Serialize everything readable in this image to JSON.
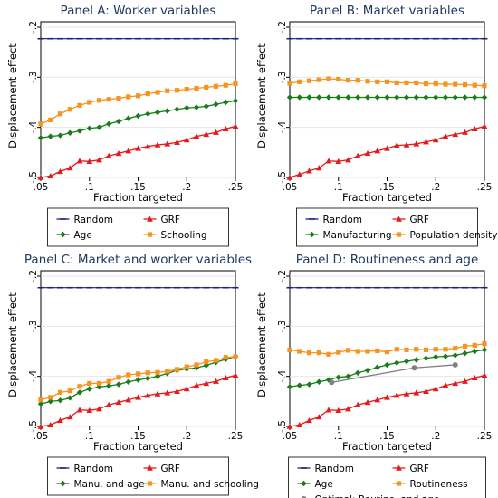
{
  "colors": {
    "random": "#1a237e",
    "grf": "#e41a1c",
    "third": "#1b7c1b",
    "fourth": "#f7931e",
    "optimal": "#808080",
    "title": "#1f3864",
    "grid": "#e6e6e6"
  },
  "chart_data": [
    {
      "type": "line",
      "title": "Panel A: Worker variables",
      "xlabel": "Fraction targeted",
      "ylabel": "Displacement effect",
      "xlim": [
        0.05,
        0.25
      ],
      "ylim": [
        -0.5,
        -0.2
      ],
      "xticks": [
        ".05",
        ".1",
        ".15",
        ".2",
        ".25"
      ],
      "yticks": [
        "-.2",
        "-.3",
        "-.4",
        "-.5"
      ],
      "grid": true,
      "legend_position": "bottom",
      "x": [
        0.05,
        0.06,
        0.07,
        0.08,
        0.09,
        0.1,
        0.11,
        0.12,
        0.13,
        0.14,
        0.15,
        0.16,
        0.17,
        0.18,
        0.19,
        0.2,
        0.21,
        0.22,
        0.23,
        0.24,
        0.25
      ],
      "series": [
        {
          "name": "Random",
          "key": "random",
          "marker": "dash",
          "values": [
            -0.223,
            -0.223,
            -0.223,
            -0.223,
            -0.223,
            -0.223,
            -0.223,
            -0.223,
            -0.223,
            -0.223,
            -0.223,
            -0.223,
            -0.223,
            -0.223,
            -0.223,
            -0.223,
            -0.223,
            -0.223,
            -0.223,
            -0.223,
            -0.223
          ]
        },
        {
          "name": "GRF",
          "key": "grf",
          "marker": "triangle",
          "values": [
            -0.5,
            -0.497,
            -0.488,
            -0.481,
            -0.467,
            -0.468,
            -0.465,
            -0.457,
            -0.452,
            -0.447,
            -0.442,
            -0.438,
            -0.435,
            -0.433,
            -0.43,
            -0.425,
            -0.418,
            -0.414,
            -0.41,
            -0.403,
            -0.398
          ]
        },
        {
          "name": "Age",
          "key": "third",
          "marker": "diamond",
          "values": [
            -0.421,
            -0.418,
            -0.416,
            -0.411,
            -0.407,
            -0.402,
            -0.4,
            -0.393,
            -0.388,
            -0.382,
            -0.377,
            -0.373,
            -0.37,
            -0.367,
            -0.364,
            -0.361,
            -0.36,
            -0.358,
            -0.354,
            -0.35,
            -0.347
          ]
        },
        {
          "name": "Schooling",
          "key": "fourth",
          "marker": "square",
          "values": [
            -0.393,
            -0.385,
            -0.373,
            -0.364,
            -0.356,
            -0.35,
            -0.346,
            -0.344,
            -0.342,
            -0.339,
            -0.337,
            -0.333,
            -0.33,
            -0.327,
            -0.326,
            -0.324,
            -0.322,
            -0.32,
            -0.318,
            -0.316,
            -0.313
          ]
        }
      ]
    },
    {
      "type": "line",
      "title": "Panel B: Market variables",
      "xlabel": "Fraction targeted",
      "ylabel": "Displacement effect",
      "xlim": [
        0.05,
        0.25
      ],
      "ylim": [
        -0.5,
        -0.2
      ],
      "xticks": [
        ".05",
        ".1",
        ".15",
        ".2",
        ".25"
      ],
      "yticks": [
        "-.2",
        "-.3",
        "-.4",
        "-.5"
      ],
      "grid": true,
      "legend_position": "bottom",
      "x": [
        0.05,
        0.06,
        0.07,
        0.08,
        0.09,
        0.1,
        0.11,
        0.12,
        0.13,
        0.14,
        0.15,
        0.16,
        0.17,
        0.18,
        0.19,
        0.2,
        0.21,
        0.22,
        0.23,
        0.24,
        0.25
      ],
      "series": [
        {
          "name": "Random",
          "key": "random",
          "marker": "dash",
          "values": [
            -0.223,
            -0.223,
            -0.223,
            -0.223,
            -0.223,
            -0.223,
            -0.223,
            -0.223,
            -0.223,
            -0.223,
            -0.223,
            -0.223,
            -0.223,
            -0.223,
            -0.223,
            -0.223,
            -0.223,
            -0.223,
            -0.223,
            -0.223,
            -0.223
          ]
        },
        {
          "name": "GRF",
          "key": "grf",
          "marker": "triangle",
          "values": [
            -0.5,
            -0.494,
            -0.487,
            -0.481,
            -0.467,
            -0.468,
            -0.465,
            -0.457,
            -0.452,
            -0.447,
            -0.442,
            -0.436,
            -0.435,
            -0.433,
            -0.429,
            -0.425,
            -0.418,
            -0.414,
            -0.41,
            -0.403,
            -0.398
          ]
        },
        {
          "name": "Manufacturing",
          "key": "third",
          "marker": "diamond",
          "values": [
            -0.34,
            -0.34,
            -0.34,
            -0.34,
            -0.34,
            -0.34,
            -0.34,
            -0.34,
            -0.34,
            -0.34,
            -0.34,
            -0.34,
            -0.34,
            -0.34,
            -0.34,
            -0.34,
            -0.34,
            -0.34,
            -0.34,
            -0.34,
            -0.34
          ]
        },
        {
          "name": "Population density",
          "key": "fourth",
          "marker": "square",
          "values": [
            -0.312,
            -0.309,
            -0.307,
            -0.305,
            -0.303,
            -0.304,
            -0.306,
            -0.306,
            -0.308,
            -0.309,
            -0.309,
            -0.311,
            -0.311,
            -0.311,
            -0.313,
            -0.313,
            -0.314,
            -0.314,
            -0.315,
            -0.316,
            -0.317
          ]
        }
      ]
    },
    {
      "type": "line",
      "title": "Panel C: Market and worker variables",
      "xlabel": "Fraction targeted",
      "ylabel": "Displacement effect",
      "xlim": [
        0.05,
        0.25
      ],
      "ylim": [
        -0.5,
        -0.2
      ],
      "xticks": [
        ".05",
        ".1",
        ".15",
        ".2",
        ".25"
      ],
      "yticks": [
        "-.2",
        "-.3",
        "-.4",
        "-.5"
      ],
      "grid": true,
      "legend_position": "bottom",
      "x": [
        0.05,
        0.06,
        0.07,
        0.08,
        0.09,
        0.1,
        0.11,
        0.12,
        0.13,
        0.14,
        0.15,
        0.16,
        0.17,
        0.18,
        0.19,
        0.2,
        0.21,
        0.22,
        0.23,
        0.24,
        0.25
      ],
      "series": [
        {
          "name": "Random",
          "key": "random",
          "marker": "dash",
          "values": [
            -0.223,
            -0.223,
            -0.223,
            -0.223,
            -0.223,
            -0.223,
            -0.223,
            -0.223,
            -0.223,
            -0.223,
            -0.223,
            -0.223,
            -0.223,
            -0.223,
            -0.223,
            -0.223,
            -0.223,
            -0.223,
            -0.223,
            -0.223,
            -0.223
          ]
        },
        {
          "name": "GRF",
          "key": "grf",
          "marker": "triangle",
          "values": [
            -0.5,
            -0.497,
            -0.488,
            -0.481,
            -0.467,
            -0.468,
            -0.465,
            -0.457,
            -0.452,
            -0.447,
            -0.442,
            -0.438,
            -0.435,
            -0.433,
            -0.43,
            -0.425,
            -0.418,
            -0.414,
            -0.41,
            -0.403,
            -0.398
          ]
        },
        {
          "name": "Manu. and age",
          "key": "third",
          "marker": "diamond",
          "values": [
            -0.455,
            -0.45,
            -0.448,
            -0.443,
            -0.432,
            -0.425,
            -0.421,
            -0.419,
            -0.416,
            -0.411,
            -0.407,
            -0.404,
            -0.4,
            -0.394,
            -0.388,
            -0.385,
            -0.383,
            -0.378,
            -0.372,
            -0.366,
            -0.36
          ]
        },
        {
          "name": "Manu. and schooling",
          "key": "fourth",
          "marker": "square",
          "values": [
            -0.447,
            -0.442,
            -0.432,
            -0.429,
            -0.42,
            -0.414,
            -0.414,
            -0.41,
            -0.402,
            -0.397,
            -0.395,
            -0.393,
            -0.392,
            -0.39,
            -0.386,
            -0.381,
            -0.377,
            -0.371,
            -0.368,
            -0.362,
            -0.361
          ]
        }
      ]
    },
    {
      "type": "line",
      "title": "Panel D: Routineness and age",
      "xlabel": "Fraction targeted",
      "ylabel": "Displacement effect",
      "xlim": [
        0.05,
        0.25
      ],
      "ylim": [
        -0.5,
        -0.2
      ],
      "xticks": [
        ".05",
        ".1",
        ".15",
        ".2",
        ".25"
      ],
      "yticks": [
        "-.2",
        "-.3",
        "-.4",
        "-.5"
      ],
      "grid": true,
      "legend_position": "bottom",
      "x": [
        0.05,
        0.06,
        0.07,
        0.08,
        0.09,
        0.1,
        0.11,
        0.12,
        0.13,
        0.14,
        0.15,
        0.16,
        0.17,
        0.18,
        0.19,
        0.2,
        0.21,
        0.22,
        0.23,
        0.24,
        0.25
      ],
      "series": [
        {
          "name": "Random",
          "key": "random",
          "marker": "dash",
          "values": [
            -0.223,
            -0.223,
            -0.223,
            -0.223,
            -0.223,
            -0.223,
            -0.223,
            -0.223,
            -0.223,
            -0.223,
            -0.223,
            -0.223,
            -0.223,
            -0.223,
            -0.223,
            -0.223,
            -0.223,
            -0.223,
            -0.223,
            -0.223,
            -0.223
          ]
        },
        {
          "name": "GRF",
          "key": "grf",
          "marker": "triangle",
          "values": [
            -0.5,
            -0.497,
            -0.488,
            -0.481,
            -0.467,
            -0.468,
            -0.465,
            -0.457,
            -0.452,
            -0.447,
            -0.442,
            -0.438,
            -0.435,
            -0.433,
            -0.43,
            -0.425,
            -0.418,
            -0.414,
            -0.41,
            -0.403,
            -0.398
          ]
        },
        {
          "name": "Age",
          "key": "third",
          "marker": "diamond",
          "values": [
            -0.421,
            -0.418,
            -0.416,
            -0.411,
            -0.407,
            -0.402,
            -0.4,
            -0.393,
            -0.388,
            -0.382,
            -0.377,
            -0.373,
            -0.37,
            -0.367,
            -0.364,
            -0.361,
            -0.36,
            -0.358,
            -0.354,
            -0.35,
            -0.347
          ]
        },
        {
          "name": "Routineness",
          "key": "fourth",
          "marker": "square",
          "values": [
            -0.347,
            -0.35,
            -0.353,
            -0.353,
            -0.356,
            -0.352,
            -0.348,
            -0.35,
            -0.35,
            -0.349,
            -0.351,
            -0.346,
            -0.347,
            -0.346,
            -0.347,
            -0.346,
            -0.346,
            -0.344,
            -0.34,
            -0.338,
            -0.335
          ]
        },
        {
          "name": "Optimal: Routine. and age",
          "key": "optimal",
          "marker": "circle",
          "x": [
            0.093,
            0.178,
            0.22
          ],
          "values": [
            -0.412,
            -0.383,
            -0.377
          ]
        }
      ]
    }
  ]
}
